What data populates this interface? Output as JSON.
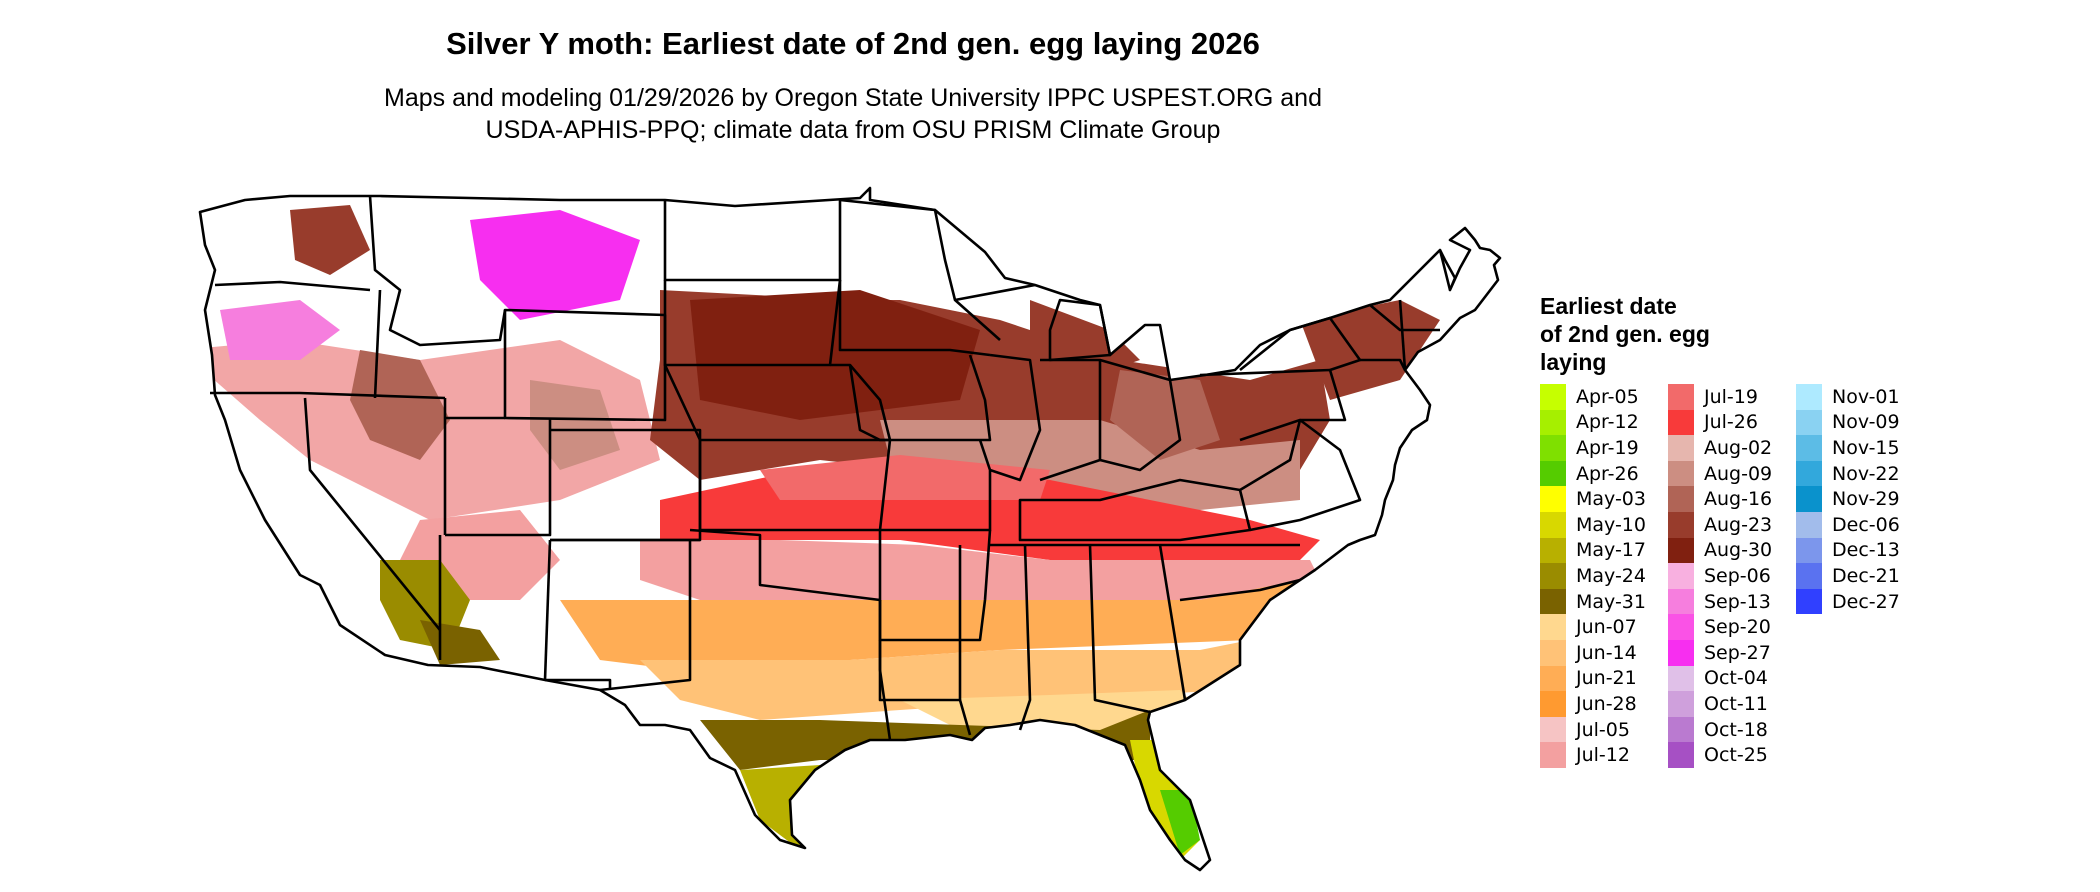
{
  "title": "Silver Y moth: Earliest date of 2nd gen. egg laying 2026",
  "subtitle_line1": "Maps and modeling 01/29/2026 by Oregon State University IPPC USPEST.ORG and",
  "subtitle_line2": "USDA-APHIS-PPQ; climate data from OSU PRISM Climate Group",
  "legend": {
    "title_lines": [
      "Earliest date",
      "of 2nd gen. egg",
      "laying"
    ],
    "columns": [
      [
        {
          "label": "Apr-05",
          "color": "#c6ff00"
        },
        {
          "label": "Apr-12",
          "color": "#a6ef00"
        },
        {
          "label": "Apr-19",
          "color": "#7fe000"
        },
        {
          "label": "Apr-26",
          "color": "#55cc00"
        },
        {
          "label": "May-03",
          "color": "#ffff00"
        },
        {
          "label": "May-10",
          "color": "#d8d800"
        },
        {
          "label": "May-17",
          "color": "#b8b000"
        },
        {
          "label": "May-24",
          "color": "#9a8c00"
        },
        {
          "label": "May-31",
          "color": "#7a6200"
        },
        {
          "label": "Jun-07",
          "color": "#ffd88f"
        },
        {
          "label": "Jun-14",
          "color": "#ffc277"
        },
        {
          "label": "Jun-21",
          "color": "#ffad55"
        },
        {
          "label": "Jun-28",
          "color": "#ff9a30"
        },
        {
          "label": "Jul-05",
          "color": "#f6c4c4"
        },
        {
          "label": "Jul-12",
          "color": "#f3a0a0"
        }
      ],
      [
        {
          "label": "Jul-19",
          "color": "#f26a6a"
        },
        {
          "label": "Jul-26",
          "color": "#f83a3a"
        },
        {
          "label": "Aug-02",
          "color": "#e6b6ae"
        },
        {
          "label": "Aug-09",
          "color": "#cc8e82"
        },
        {
          "label": "Aug-16",
          "color": "#b06456"
        },
        {
          "label": "Aug-23",
          "color": "#983c2c"
        },
        {
          "label": "Aug-30",
          "color": "#802010"
        },
        {
          "label": "Sep-06",
          "color": "#f8b0e0"
        },
        {
          "label": "Sep-13",
          "color": "#f67ede"
        },
        {
          "label": "Sep-20",
          "color": "#fa52e6"
        },
        {
          "label": "Sep-27",
          "color": "#f72ef0"
        },
        {
          "label": "Oct-04",
          "color": "#e0c0e8"
        },
        {
          "label": "Oct-11",
          "color": "#cfa0dc"
        },
        {
          "label": "Oct-18",
          "color": "#ba7ad0"
        },
        {
          "label": "Oct-25",
          "color": "#a650c4"
        }
      ],
      [
        {
          "label": "Nov-01",
          "color": "#aeeaff"
        },
        {
          "label": "Nov-09",
          "color": "#8ad2f2"
        },
        {
          "label": "Nov-15",
          "color": "#5cbce6"
        },
        {
          "label": "Nov-22",
          "color": "#32a8dc"
        },
        {
          "label": "Nov-29",
          "color": "#0a92cc"
        },
        {
          "label": "Dec-06",
          "color": "#a2bceb"
        },
        {
          "label": "Dec-13",
          "color": "#7c96ec"
        },
        {
          "label": "Dec-21",
          "color": "#5a72f0"
        },
        {
          "label": "Dec-27",
          "color": "#3040ff"
        }
      ]
    ]
  }
}
